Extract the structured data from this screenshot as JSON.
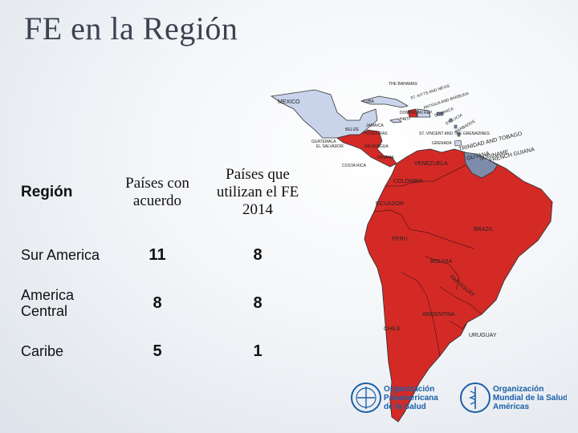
{
  "title": "FE en la Región",
  "table": {
    "headers": [
      "Región",
      "Países con acuerdo",
      "Países que utilizan el FE 2014"
    ],
    "rows": [
      {
        "region": "Sur America",
        "agreement": "11",
        "use": "8"
      },
      {
        "region": "America Central",
        "agreement": "8",
        "use": "8"
      },
      {
        "region": "Caribe",
        "agreement": "5",
        "use": "1"
      }
    ]
  },
  "map": {
    "labels": {
      "bahamas": "THE BAHAMAS",
      "mexico": "MEXICO",
      "cuba": "CUBA",
      "st_kitts": "ST. KITTS AND NEVIS",
      "antigua": "ANTIGUA AND BARBUDA",
      "dominica": "DOMINICA",
      "st_lucia": "ST. LUCIA",
      "barbados": "BARBADOS",
      "jamaica": "JAMAICA",
      "haiti": "HAITI",
      "dom_rep": "DOMINICAN REP.",
      "belize": "BELIZE",
      "honduras": "HONDURAS",
      "guatemala": "GUATEMALA",
      "el_salvador": "EL SALVADOR",
      "nicaragua": "NICARAGUA",
      "costa_rica": "COSTA RICA",
      "panama": "PANAMA",
      "st_vincent": "ST. VINCENT AND THE GRENADINES",
      "grenada": "GRENADA",
      "trinidad": "TRINIDAD AND TOBAGO",
      "venezuela": "VENEZUELA",
      "guyana": "GUYANA",
      "suriname": "SURINAME",
      "french_guiana": "FRENCH GUIANA",
      "colombia": "COLOMBIA",
      "ecuador": "ECUADOR",
      "peru": "PERU",
      "brazil": "BRAZIL",
      "bolivia": "BOLIVIA",
      "paraguay": "PARAGUAY",
      "argentina": "ARGENTINA",
      "chile": "CHILE",
      "uruguay": "URUGUAY"
    }
  },
  "logos": {
    "paho_line1": "Organización",
    "paho_line2": "Panamericana",
    "paho_line3": "de la Salud",
    "who_line1": "Organización",
    "who_line2": "Mundial de la Salud",
    "who_line3": "Américas"
  },
  "colors": {
    "red_fill": "#d42a26",
    "light_blue_fill": "#c9d3ea",
    "slate_fill": "#7e8cac",
    "paho_blue": "#1b5fa8",
    "title": "#3b4250"
  }
}
